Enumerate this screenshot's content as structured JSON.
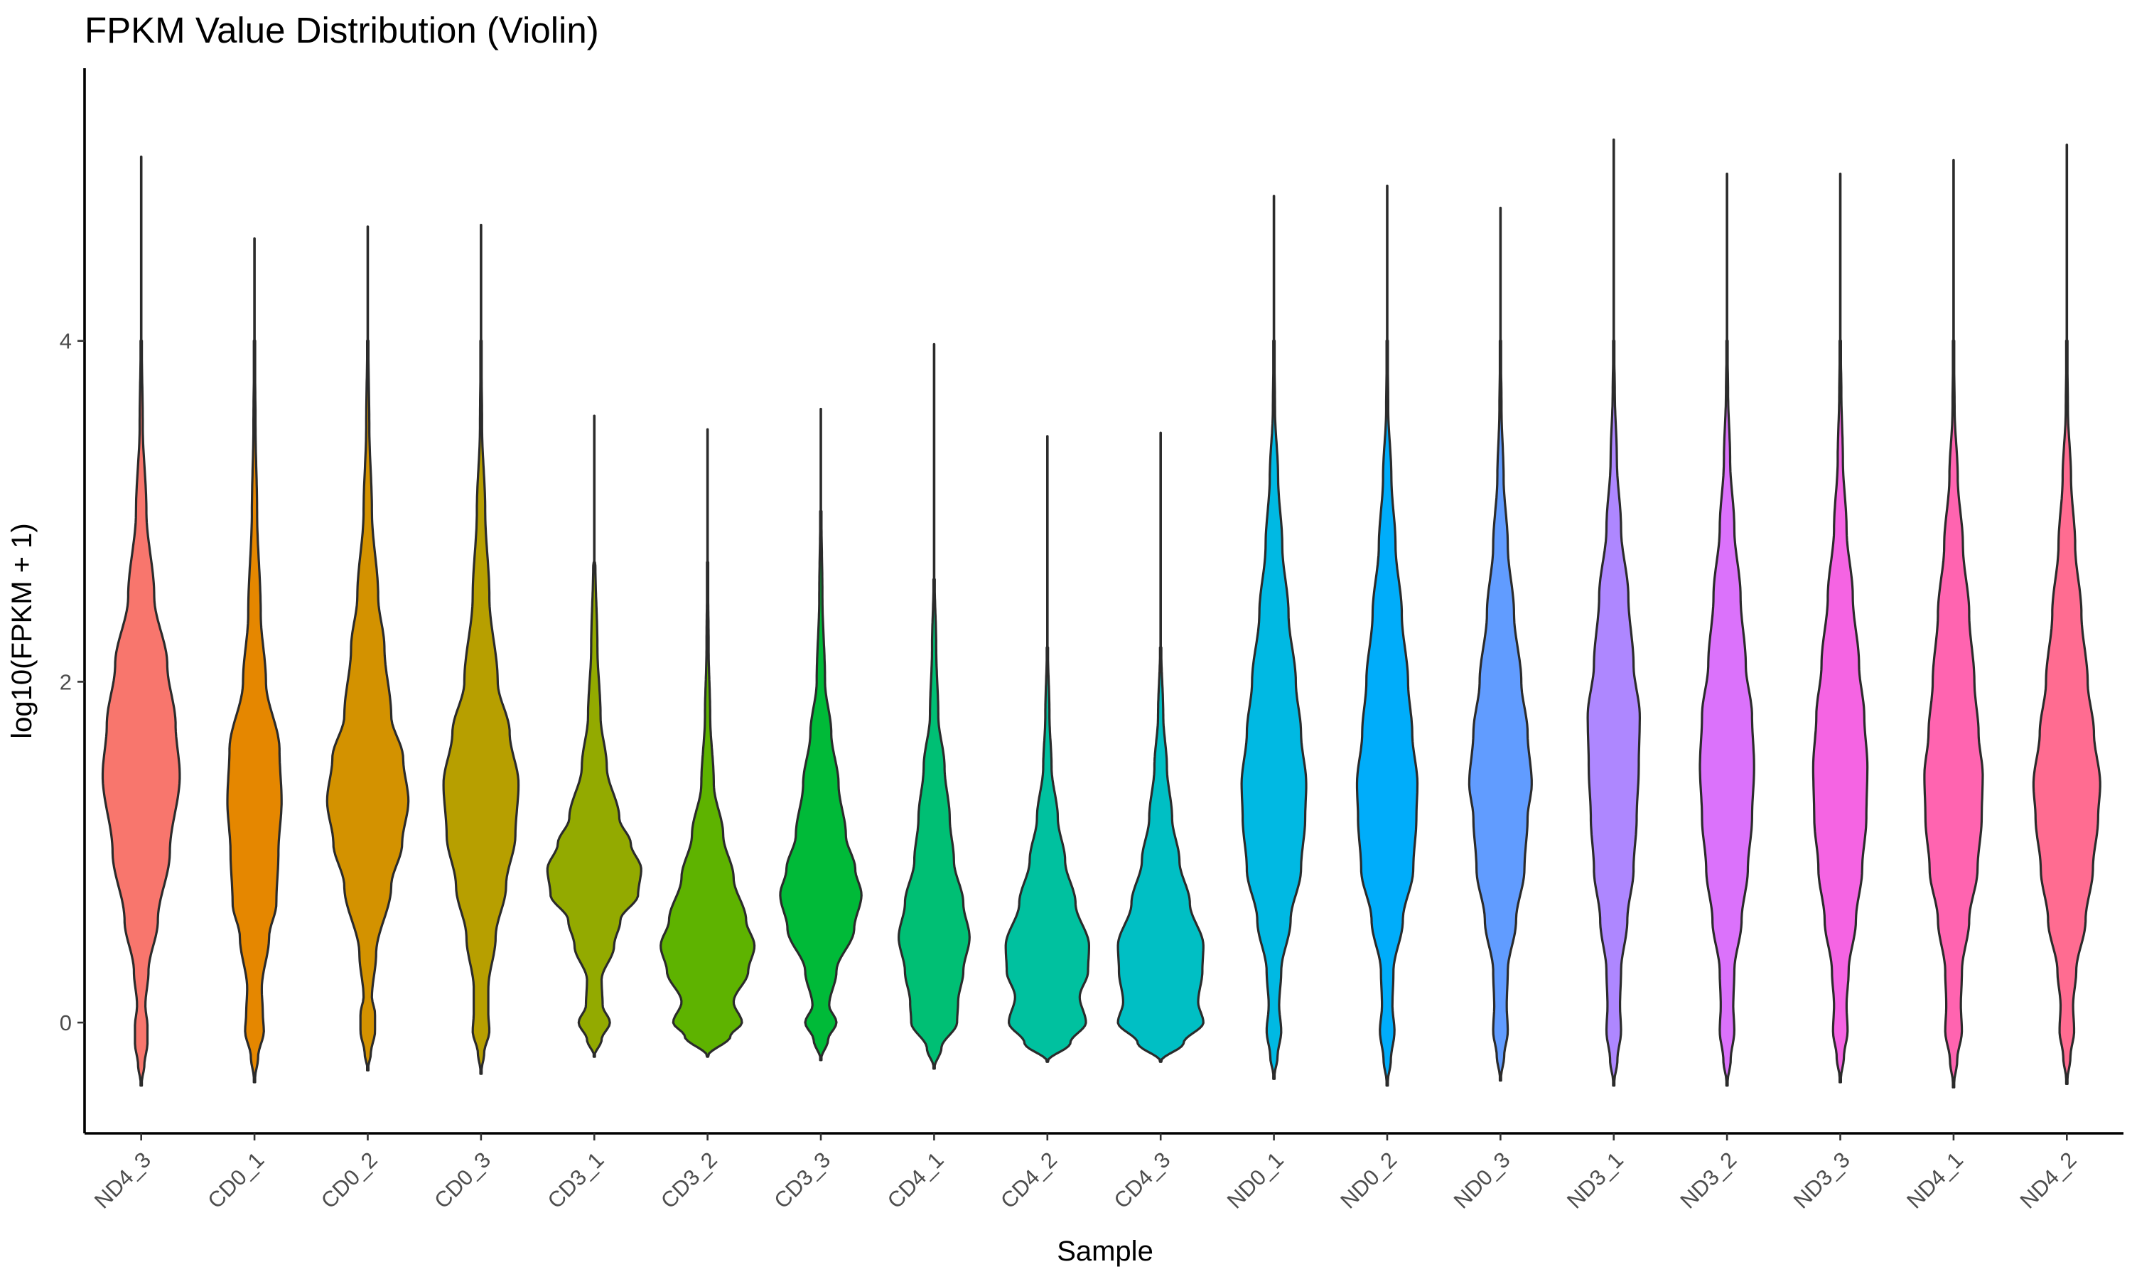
{
  "chart_data": {
    "type": "violin",
    "title": "FPKM Value Distribution (Violin)",
    "xlabel": "Sample",
    "ylabel": "log10(FPKM + 1)",
    "ylim": [
      -0.65,
      5.6
    ],
    "yticks": [
      0,
      2,
      4
    ],
    "grid": false,
    "legend": "none",
    "samples": [
      {
        "name": "ND4_3",
        "color": "#F8766D",
        "min": -0.37,
        "max": 5.08,
        "profile": [
          [
            -0.37,
            0
          ],
          [
            -0.25,
            0.06
          ],
          [
            -0.12,
            0.12
          ],
          [
            -0.02,
            0.12
          ],
          [
            0.1,
            0.08
          ],
          [
            0.3,
            0.14
          ],
          [
            0.6,
            0.32
          ],
          [
            1.0,
            0.55
          ],
          [
            1.45,
            0.74
          ],
          [
            1.75,
            0.66
          ],
          [
            2.1,
            0.5
          ],
          [
            2.5,
            0.25
          ],
          [
            3.0,
            0.1
          ],
          [
            3.5,
            0.03
          ],
          [
            4.0,
            0.01
          ]
        ]
      },
      {
        "name": "CD0_1",
        "color": "#E58700",
        "min": -0.35,
        "max": 4.6,
        "profile": [
          [
            -0.35,
            0
          ],
          [
            -0.2,
            0.07
          ],
          [
            -0.05,
            0.18
          ],
          [
            0.05,
            0.16
          ],
          [
            0.2,
            0.14
          ],
          [
            0.5,
            0.28
          ],
          [
            0.7,
            0.42
          ],
          [
            1.0,
            0.46
          ],
          [
            1.3,
            0.52
          ],
          [
            1.6,
            0.48
          ],
          [
            2.0,
            0.22
          ],
          [
            2.4,
            0.12
          ],
          [
            3.0,
            0.05
          ],
          [
            3.5,
            0.02
          ],
          [
            4.0,
            0.005
          ]
        ]
      },
      {
        "name": "CD0_2",
        "color": "#D39200",
        "min": -0.28,
        "max": 4.67,
        "profile": [
          [
            -0.28,
            0
          ],
          [
            -0.18,
            0.06
          ],
          [
            -0.05,
            0.14
          ],
          [
            0.05,
            0.14
          ],
          [
            0.15,
            0.08
          ],
          [
            0.4,
            0.16
          ],
          [
            0.8,
            0.45
          ],
          [
            1.05,
            0.66
          ],
          [
            1.3,
            0.78
          ],
          [
            1.55,
            0.68
          ],
          [
            1.8,
            0.45
          ],
          [
            2.2,
            0.32
          ],
          [
            2.5,
            0.2
          ],
          [
            3.0,
            0.08
          ],
          [
            3.5,
            0.03
          ],
          [
            4.0,
            0.01
          ]
        ]
      },
      {
        "name": "CD0_3",
        "color": "#B79F00",
        "min": -0.3,
        "max": 4.68,
        "profile": [
          [
            -0.3,
            0
          ],
          [
            -0.18,
            0.06
          ],
          [
            -0.05,
            0.16
          ],
          [
            0.05,
            0.14
          ],
          [
            0.2,
            0.14
          ],
          [
            0.5,
            0.28
          ],
          [
            0.8,
            0.48
          ],
          [
            1.1,
            0.66
          ],
          [
            1.4,
            0.72
          ],
          [
            1.7,
            0.55
          ],
          [
            2.0,
            0.32
          ],
          [
            2.5,
            0.16
          ],
          [
            3.0,
            0.08
          ],
          [
            3.5,
            0.02
          ],
          [
            4.0,
            0.005
          ]
        ]
      },
      {
        "name": "CD3_1",
        "color": "#93AA00",
        "min": -0.2,
        "max": 3.56,
        "profile": [
          [
            -0.2,
            0
          ],
          [
            -0.1,
            0.14
          ],
          [
            0.0,
            0.3
          ],
          [
            0.1,
            0.16
          ],
          [
            0.25,
            0.14
          ],
          [
            0.45,
            0.38
          ],
          [
            0.6,
            0.5
          ],
          [
            0.75,
            0.84
          ],
          [
            0.9,
            0.9
          ],
          [
            1.05,
            0.7
          ],
          [
            1.2,
            0.48
          ],
          [
            1.5,
            0.24
          ],
          [
            1.8,
            0.12
          ],
          [
            2.2,
            0.06
          ],
          [
            2.7,
            0.02
          ]
        ]
      },
      {
        "name": "CD3_2",
        "color": "#5EB300",
        "min": -0.2,
        "max": 3.48,
        "profile": [
          [
            -0.2,
            0
          ],
          [
            -0.08,
            0.44
          ],
          [
            0.0,
            0.66
          ],
          [
            0.12,
            0.5
          ],
          [
            0.3,
            0.78
          ],
          [
            0.45,
            0.9
          ],
          [
            0.6,
            0.74
          ],
          [
            0.85,
            0.5
          ],
          [
            1.1,
            0.3
          ],
          [
            1.4,
            0.12
          ],
          [
            1.8,
            0.05
          ],
          [
            2.2,
            0.02
          ],
          [
            2.7,
            0.005
          ]
        ]
      },
      {
        "name": "CD3_3",
        "color": "#00BA38",
        "min": -0.22,
        "max": 3.6,
        "profile": [
          [
            -0.22,
            0
          ],
          [
            -0.1,
            0.14
          ],
          [
            0.0,
            0.3
          ],
          [
            0.1,
            0.16
          ],
          [
            0.3,
            0.3
          ],
          [
            0.55,
            0.64
          ],
          [
            0.75,
            0.78
          ],
          [
            0.9,
            0.66
          ],
          [
            1.1,
            0.48
          ],
          [
            1.4,
            0.34
          ],
          [
            1.7,
            0.2
          ],
          [
            2.0,
            0.08
          ],
          [
            2.5,
            0.03
          ],
          [
            3.0,
            0.01
          ]
        ]
      },
      {
        "name": "CD4_1",
        "color": "#00BF74",
        "min": -0.27,
        "max": 3.98,
        "profile": [
          [
            -0.27,
            0
          ],
          [
            -0.15,
            0.14
          ],
          [
            0.0,
            0.44
          ],
          [
            0.12,
            0.46
          ],
          [
            0.3,
            0.56
          ],
          [
            0.5,
            0.68
          ],
          [
            0.7,
            0.56
          ],
          [
            0.95,
            0.38
          ],
          [
            1.2,
            0.3
          ],
          [
            1.5,
            0.2
          ],
          [
            1.8,
            0.08
          ],
          [
            2.2,
            0.04
          ],
          [
            2.6,
            0.01
          ]
        ]
      },
      {
        "name": "CD4_2",
        "color": "#00C19F",
        "min": -0.23,
        "max": 3.44,
        "profile": [
          [
            -0.23,
            0
          ],
          [
            -0.12,
            0.44
          ],
          [
            0.0,
            0.74
          ],
          [
            0.15,
            0.62
          ],
          [
            0.3,
            0.78
          ],
          [
            0.45,
            0.8
          ],
          [
            0.7,
            0.54
          ],
          [
            0.95,
            0.34
          ],
          [
            1.2,
            0.2
          ],
          [
            1.5,
            0.08
          ],
          [
            1.8,
            0.04
          ],
          [
            2.2,
            0.01
          ]
        ]
      },
      {
        "name": "CD4_3",
        "color": "#00BFC4",
        "min": -0.23,
        "max": 3.46,
        "profile": [
          [
            -0.23,
            0
          ],
          [
            -0.12,
            0.44
          ],
          [
            0.0,
            0.82
          ],
          [
            0.12,
            0.72
          ],
          [
            0.3,
            0.8
          ],
          [
            0.45,
            0.82
          ],
          [
            0.7,
            0.56
          ],
          [
            0.95,
            0.36
          ],
          [
            1.2,
            0.22
          ],
          [
            1.5,
            0.12
          ],
          [
            1.8,
            0.05
          ],
          [
            2.2,
            0.01
          ]
        ]
      },
      {
        "name": "ND0_1",
        "color": "#00B9E3",
        "min": -0.33,
        "max": 4.85,
        "profile": [
          [
            -0.33,
            0
          ],
          [
            -0.2,
            0.07
          ],
          [
            -0.05,
            0.14
          ],
          [
            0.1,
            0.1
          ],
          [
            0.3,
            0.14
          ],
          [
            0.6,
            0.32
          ],
          [
            0.9,
            0.52
          ],
          [
            1.2,
            0.6
          ],
          [
            1.4,
            0.62
          ],
          [
            1.7,
            0.52
          ],
          [
            2.0,
            0.42
          ],
          [
            2.4,
            0.28
          ],
          [
            2.8,
            0.16
          ],
          [
            3.2,
            0.08
          ],
          [
            3.6,
            0.02
          ],
          [
            4.0,
            0.005
          ]
        ]
      },
      {
        "name": "ND0_2",
        "color": "#00ADFA",
        "min": -0.37,
        "max": 4.91,
        "profile": [
          [
            -0.37,
            0
          ],
          [
            -0.22,
            0.07
          ],
          [
            -0.05,
            0.14
          ],
          [
            0.1,
            0.1
          ],
          [
            0.3,
            0.12
          ],
          [
            0.6,
            0.3
          ],
          [
            0.9,
            0.5
          ],
          [
            1.2,
            0.56
          ],
          [
            1.4,
            0.58
          ],
          [
            1.7,
            0.48
          ],
          [
            2.0,
            0.4
          ],
          [
            2.4,
            0.28
          ],
          [
            2.8,
            0.16
          ],
          [
            3.2,
            0.08
          ],
          [
            3.6,
            0.02
          ],
          [
            4.0,
            0.005
          ]
        ]
      },
      {
        "name": "ND0_3",
        "color": "#619CFF",
        "min": -0.34,
        "max": 4.78,
        "profile": [
          [
            -0.34,
            0
          ],
          [
            -0.2,
            0.07
          ],
          [
            -0.05,
            0.14
          ],
          [
            0.1,
            0.12
          ],
          [
            0.3,
            0.14
          ],
          [
            0.6,
            0.3
          ],
          [
            0.9,
            0.46
          ],
          [
            1.2,
            0.52
          ],
          [
            1.4,
            0.6
          ],
          [
            1.7,
            0.52
          ],
          [
            2.0,
            0.4
          ],
          [
            2.4,
            0.26
          ],
          [
            2.8,
            0.14
          ],
          [
            3.2,
            0.06
          ],
          [
            3.6,
            0.02
          ],
          [
            4.0,
            0.005
          ]
        ]
      },
      {
        "name": "ND3_1",
        "color": "#AE87FF",
        "min": -0.37,
        "max": 5.18,
        "profile": [
          [
            -0.37,
            0
          ],
          [
            -0.22,
            0.07
          ],
          [
            -0.05,
            0.14
          ],
          [
            0.1,
            0.12
          ],
          [
            0.3,
            0.14
          ],
          [
            0.6,
            0.26
          ],
          [
            0.9,
            0.38
          ],
          [
            1.2,
            0.44
          ],
          [
            1.5,
            0.48
          ],
          [
            1.8,
            0.5
          ],
          [
            2.1,
            0.38
          ],
          [
            2.5,
            0.28
          ],
          [
            2.9,
            0.14
          ],
          [
            3.3,
            0.06
          ],
          [
            3.7,
            0.02
          ],
          [
            4.0,
            0.005
          ]
        ]
      },
      {
        "name": "ND3_2",
        "color": "#DB72FB",
        "min": -0.37,
        "max": 4.98,
        "profile": [
          [
            -0.37,
            0
          ],
          [
            -0.22,
            0.07
          ],
          [
            -0.05,
            0.14
          ],
          [
            0.1,
            0.12
          ],
          [
            0.3,
            0.14
          ],
          [
            0.6,
            0.28
          ],
          [
            0.9,
            0.4
          ],
          [
            1.2,
            0.48
          ],
          [
            1.5,
            0.52
          ],
          [
            1.8,
            0.48
          ],
          [
            2.1,
            0.36
          ],
          [
            2.5,
            0.26
          ],
          [
            2.9,
            0.14
          ],
          [
            3.3,
            0.06
          ],
          [
            3.7,
            0.02
          ],
          [
            4.0,
            0.005
          ]
        ]
      },
      {
        "name": "ND3_3",
        "color": "#F564E3",
        "min": -0.35,
        "max": 4.98,
        "profile": [
          [
            -0.35,
            0
          ],
          [
            -0.2,
            0.07
          ],
          [
            -0.05,
            0.14
          ],
          [
            0.1,
            0.12
          ],
          [
            0.3,
            0.16
          ],
          [
            0.6,
            0.3
          ],
          [
            0.9,
            0.42
          ],
          [
            1.2,
            0.5
          ],
          [
            1.5,
            0.52
          ],
          [
            1.8,
            0.46
          ],
          [
            2.1,
            0.36
          ],
          [
            2.5,
            0.24
          ],
          [
            2.9,
            0.12
          ],
          [
            3.3,
            0.05
          ],
          [
            3.7,
            0.02
          ],
          [
            4.0,
            0.005
          ]
        ]
      },
      {
        "name": "ND4_1",
        "color": "#FF64B0",
        "min": -0.38,
        "max": 5.06,
        "profile": [
          [
            -0.38,
            0
          ],
          [
            -0.22,
            0.07
          ],
          [
            -0.05,
            0.16
          ],
          [
            0.1,
            0.14
          ],
          [
            0.3,
            0.16
          ],
          [
            0.6,
            0.3
          ],
          [
            0.9,
            0.46
          ],
          [
            1.2,
            0.54
          ],
          [
            1.45,
            0.56
          ],
          [
            1.7,
            0.48
          ],
          [
            2.0,
            0.4
          ],
          [
            2.4,
            0.3
          ],
          [
            2.8,
            0.18
          ],
          [
            3.2,
            0.08
          ],
          [
            3.6,
            0.02
          ],
          [
            4.0,
            0.005
          ]
        ]
      },
      {
        "name": "ND4_2",
        "color": "#FF6C91",
        "min": -0.36,
        "max": 5.15,
        "profile": [
          [
            -0.36,
            0
          ],
          [
            -0.2,
            0.07
          ],
          [
            -0.05,
            0.14
          ],
          [
            0.1,
            0.12
          ],
          [
            0.3,
            0.18
          ],
          [
            0.6,
            0.36
          ],
          [
            0.9,
            0.5
          ],
          [
            1.2,
            0.6
          ],
          [
            1.4,
            0.64
          ],
          [
            1.7,
            0.52
          ],
          [
            2.0,
            0.4
          ],
          [
            2.4,
            0.28
          ],
          [
            2.8,
            0.16
          ],
          [
            3.2,
            0.08
          ],
          [
            3.6,
            0.02
          ],
          [
            4.0,
            0.005
          ]
        ]
      }
    ]
  }
}
